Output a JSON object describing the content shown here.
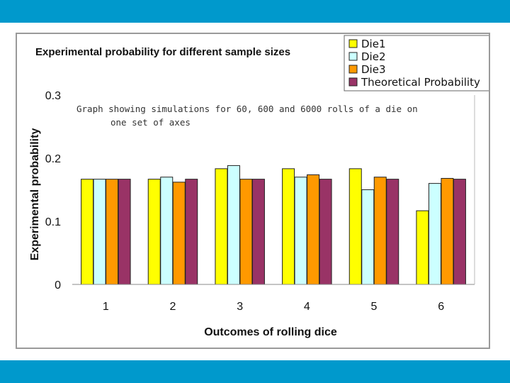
{
  "chart_data": {
    "type": "bar",
    "title": "Experimental probability for different  sample sizes",
    "xlabel": "Outcomes of rolling dice",
    "ylabel": "Experimental probability",
    "ylim": [
      0,
      0.3
    ],
    "yticks": [
      "0",
      "0.1",
      "0.2",
      "0.3"
    ],
    "categories": [
      "1",
      "2",
      "3",
      "4",
      "5",
      "6"
    ],
    "series": [
      {
        "name": "Die1",
        "color": "#ffff00",
        "values": [
          0.1667,
          0.1667,
          0.1833,
          0.1833,
          0.1833,
          0.1167
        ]
      },
      {
        "name": "Die2",
        "color": "#ccffff",
        "values": [
          0.1667,
          0.17,
          0.1883,
          0.17,
          0.15,
          0.16
        ]
      },
      {
        "name": "Die3",
        "color": "#ff9900",
        "values": [
          0.1667,
          0.162,
          0.1667,
          0.1737,
          0.17,
          0.168
        ]
      },
      {
        "name": "Theoretical Probability",
        "color": "#993366",
        "values": [
          0.1667,
          0.1667,
          0.1667,
          0.1667,
          0.1667,
          0.1667
        ]
      }
    ],
    "legend_position": "top-right",
    "annotation": "Graph showing simulations for 60, 600 and 6000 rolls of a die on one set of axes",
    "annotation_lines": [
      "Graph showing simulations for 60, 600 and 6000 rolls of a die on",
      "one set of axes"
    ]
  }
}
